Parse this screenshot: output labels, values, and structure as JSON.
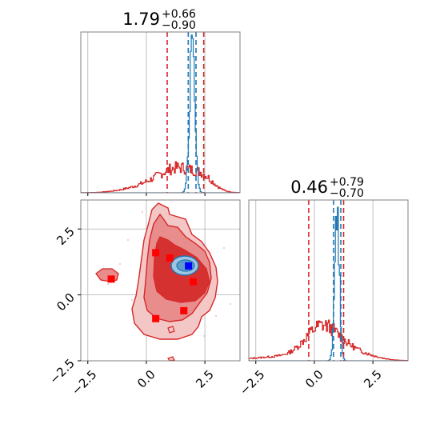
{
  "chart_data": {
    "type": "corner",
    "parameters": [
      {
        "median": "1.79",
        "plus": "+0.66",
        "minus": "−0.90"
      },
      {
        "median": "0.46",
        "plus": "+0.79",
        "minus": "−0.70"
      }
    ],
    "grid": true,
    "colors": {
      "red": "#d62728",
      "blue": "#1f77b4",
      "marker_red": "#ff0000",
      "marker_blue": "#0000ff"
    },
    "x_range": [
      -2.8,
      4.0
    ],
    "y_range": [
      -2.5,
      3.6
    ],
    "ticks": [
      {
        "value": -2.5,
        "label": "−2.5"
      },
      {
        "value": 0.0,
        "label": "0.0"
      },
      {
        "value": 2.5,
        "label": "2.5"
      }
    ],
    "hist_1": {
      "red_quantile_lines": [
        0.89,
        2.45
      ],
      "blue_quantile_lines": [
        1.79,
        2.12
      ],
      "blue_median": 1.96
    },
    "hist_2": {
      "red_quantile_lines": [
        -0.24,
        1.25
      ],
      "blue_quantile_lines": [
        0.82,
        1.13
      ],
      "blue_median": 0.97
    },
    "scatter_red_points": [
      {
        "x": 0.4,
        "y": 1.6
      },
      {
        "x": 1.0,
        "y": 1.4
      },
      {
        "x": -1.5,
        "y": 0.6
      },
      {
        "x": 2.0,
        "y": 0.5
      },
      {
        "x": 1.6,
        "y": -0.6
      },
      {
        "x": 0.4,
        "y": -0.9
      }
    ],
    "scatter_blue_points": [
      {
        "x": 1.8,
        "y": 1.1
      }
    ]
  }
}
